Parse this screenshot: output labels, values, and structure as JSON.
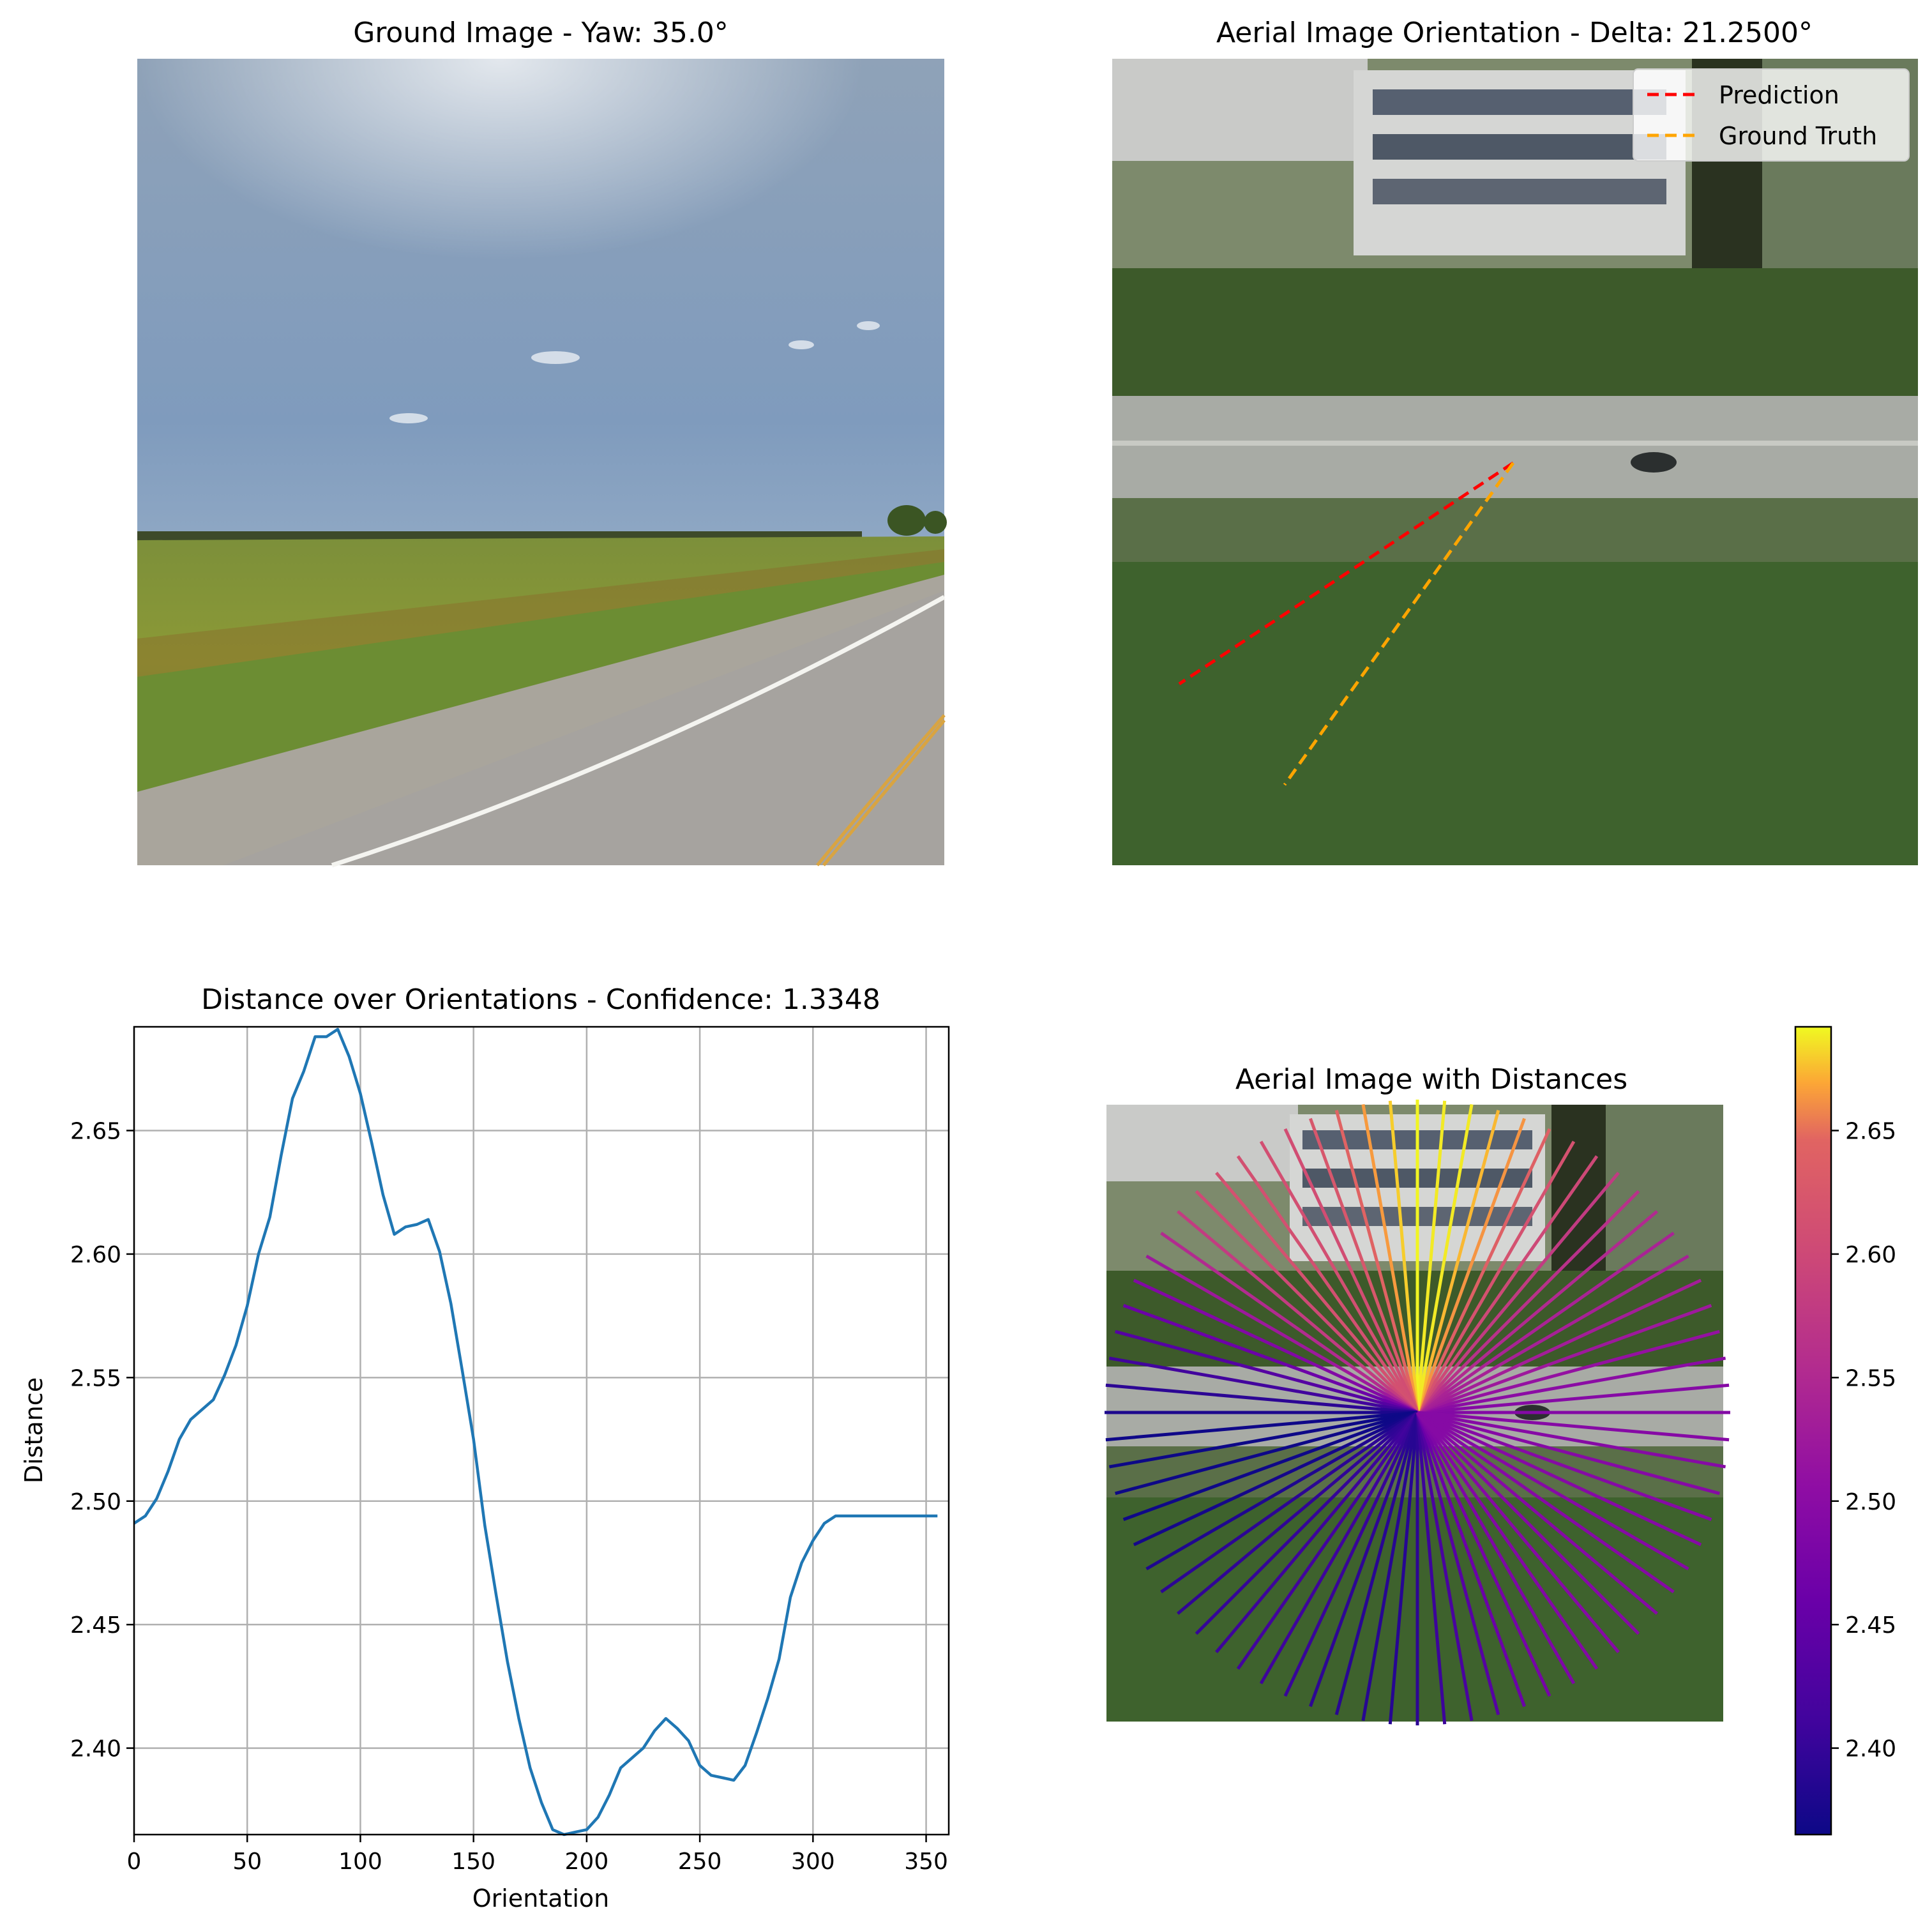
{
  "panels": {
    "ground": {
      "title": "Ground Image - Yaw: 35.0°"
    },
    "aerial_orientation": {
      "title": "Aerial Image Orientation - Delta: 21.2500°",
      "legend": [
        {
          "label": "Prediction",
          "color": "#ff0000"
        },
        {
          "label": "Ground Truth",
          "color": "#ffa500"
        }
      ]
    },
    "aerial_distances": {
      "title": "Aerial Image with Distances",
      "colormap": "plasma"
    }
  },
  "chart_data": [
    {
      "type": "line",
      "title": "Distance over Orientations - Confidence: 1.3348",
      "xlabel": "Orientation",
      "ylabel": "Distance",
      "xlim": [
        0,
        360
      ],
      "ylim": [
        2.365,
        2.692
      ],
      "grid": true,
      "line_color": "#1f77b4",
      "x_ticks": [
        "0",
        "50",
        "100",
        "150",
        "200",
        "250",
        "300",
        "350"
      ],
      "y_ticks": [
        "2.40",
        "2.45",
        "2.50",
        "2.55",
        "2.60",
        "2.65"
      ],
      "x": [
        0,
        5,
        10,
        15,
        20,
        25,
        30,
        35,
        40,
        45,
        50,
        55,
        60,
        65,
        70,
        75,
        80,
        85,
        90,
        95,
        100,
        105,
        110,
        115,
        120,
        125,
        130,
        135,
        140,
        145,
        150,
        155,
        160,
        165,
        170,
        175,
        180,
        185,
        190,
        195,
        200,
        205,
        210,
        215,
        220,
        225,
        230,
        235,
        240,
        245,
        250,
        255,
        260,
        265,
        270,
        275,
        280,
        285,
        290,
        295,
        300,
        305,
        310,
        315,
        320,
        325,
        330,
        335,
        340,
        345,
        350,
        355
      ],
      "values": [
        2.491,
        2.494,
        2.501,
        2.512,
        2.525,
        2.533,
        2.537,
        2.541,
        2.551,
        2.563,
        2.579,
        2.6,
        2.615,
        2.64,
        2.663,
        2.674,
        2.688,
        2.688,
        2.691,
        2.68,
        2.665,
        2.645,
        2.624,
        2.608,
        2.611,
        2.612,
        2.614,
        2.601,
        2.58,
        2.553,
        2.525,
        2.49,
        2.462,
        2.435,
        2.412,
        2.392,
        2.378,
        2.367,
        2.365,
        2.366,
        2.367,
        2.372,
        2.381,
        2.392,
        2.396,
        2.4,
        2.407,
        2.412,
        2.408,
        2.403,
        2.393,
        2.389,
        2.388,
        2.387,
        2.393,
        2.406,
        2.42,
        2.436,
        2.461,
        2.475,
        2.484,
        2.491,
        2.494,
        2.494,
        2.494,
        2.494,
        2.494,
        2.494,
        2.494,
        2.494,
        2.494,
        2.494
      ]
    },
    {
      "type": "colorbar",
      "colormap": "plasma",
      "range": [
        2.365,
        2.692
      ],
      "ticks": [
        "2.40",
        "2.45",
        "2.50",
        "2.55",
        "2.60",
        "2.65"
      ]
    }
  ]
}
